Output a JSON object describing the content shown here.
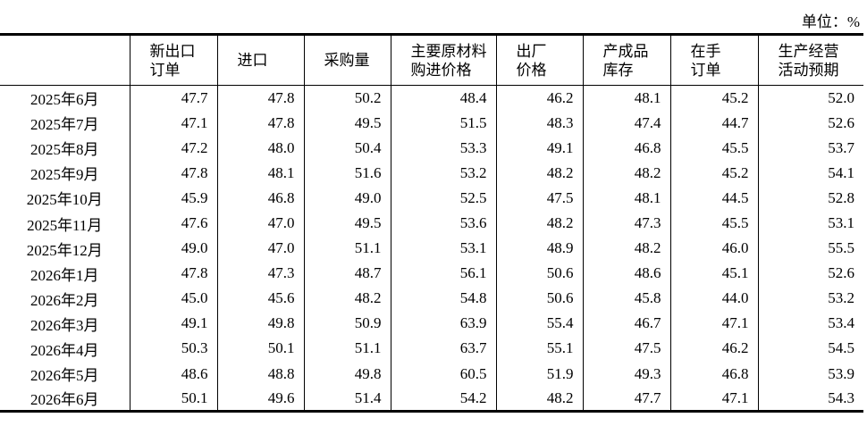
{
  "unit": "单位：%",
  "table": {
    "header": [
      [
        "新出口",
        "订单"
      ],
      [
        "进口"
      ],
      [
        "采购量"
      ],
      [
        "主要原材料",
        "购进价格"
      ],
      [
        "出厂",
        "价格"
      ],
      [
        "产成品",
        "库存"
      ],
      [
        "在手",
        "订单"
      ],
      [
        "生产经营",
        "活动预期"
      ]
    ],
    "rows": [
      [
        "2025年6月",
        "47.7",
        "47.8",
        "50.2",
        "48.4",
        "46.2",
        "48.1",
        "45.2",
        "52.0"
      ],
      [
        "2025年7月",
        "47.1",
        "47.8",
        "49.5",
        "51.5",
        "48.3",
        "47.4",
        "44.7",
        "52.6"
      ],
      [
        "2025年8月",
        "47.2",
        "48.0",
        "50.4",
        "53.3",
        "49.1",
        "46.8",
        "45.5",
        "53.7"
      ],
      [
        "2025年9月",
        "47.8",
        "48.1",
        "51.6",
        "53.2",
        "48.2",
        "48.2",
        "45.2",
        "54.1"
      ],
      [
        "2025年10月",
        "45.9",
        "46.8",
        "49.0",
        "52.5",
        "47.5",
        "48.1",
        "44.5",
        "52.8"
      ],
      [
        "2025年11月",
        "47.6",
        "47.0",
        "49.5",
        "53.6",
        "48.2",
        "47.3",
        "45.5",
        "53.1"
      ],
      [
        "2025年12月",
        "49.0",
        "47.0",
        "51.1",
        "53.1",
        "48.9",
        "48.2",
        "46.0",
        "55.5"
      ],
      [
        "2026年1月",
        "47.8",
        "47.3",
        "48.7",
        "56.1",
        "50.6",
        "48.6",
        "45.1",
        "52.6"
      ],
      [
        "2026年2月",
        "45.0",
        "45.6",
        "48.2",
        "54.8",
        "50.6",
        "45.8",
        "44.0",
        "53.2"
      ],
      [
        "2026年3月",
        "49.1",
        "49.8",
        "50.9",
        "63.9",
        "55.4",
        "46.7",
        "47.1",
        "53.4"
      ],
      [
        "2026年4月",
        "50.3",
        "50.1",
        "51.1",
        "63.7",
        "55.1",
        "47.5",
        "46.2",
        "54.5"
      ],
      [
        "2026年5月",
        "48.6",
        "48.8",
        "49.8",
        "60.5",
        "51.9",
        "49.3",
        "46.8",
        "53.9"
      ],
      [
        "2026年6月",
        "50.1",
        "49.6",
        "51.4",
        "54.2",
        "48.2",
        "47.7",
        "47.1",
        "54.3"
      ]
    ]
  }
}
